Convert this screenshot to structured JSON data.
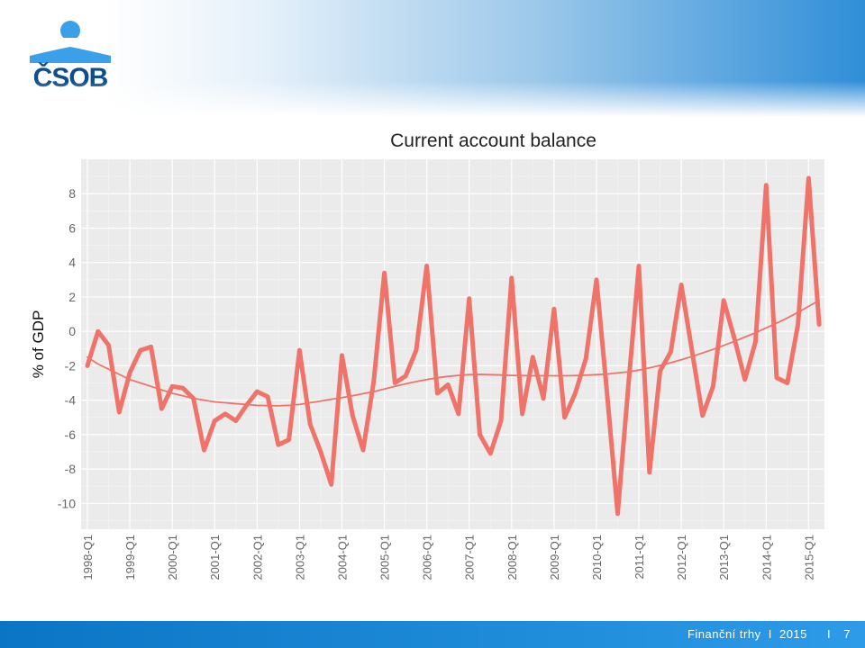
{
  "brand": {
    "name": "ČSOB",
    "color": "#0c4f8e",
    "accent": "#3aa0ea"
  },
  "footer": {
    "label": "Finanční trhy",
    "sep1": "I",
    "year": "2015",
    "sep2": "I",
    "page": "7"
  },
  "chart_data": {
    "type": "line",
    "title": "Current account balance",
    "xlabel": "",
    "ylabel": "% of GDP",
    "ylim": [
      -11.5,
      10
    ],
    "yticks": [
      -10,
      -8,
      -6,
      -4,
      -2,
      0,
      2,
      4,
      6,
      8
    ],
    "grid": true,
    "legend": "none",
    "x_tick_labels": [
      "1998-Q1",
      "1999-Q1",
      "2000-Q1",
      "2001-Q1",
      "2002-Q1",
      "2003-Q1",
      "2004-Q1",
      "2005-Q1",
      "2006-Q1",
      "2007-Q1",
      "2008-Q1",
      "2009-Q1",
      "2010-Q1",
      "2011-Q1",
      "2012-Q1",
      "2013-Q1",
      "2014-Q1",
      "2015-Q1"
    ],
    "x_start": "1998-Q1",
    "series": [
      {
        "color": "#f0736a",
        "style": "thick",
        "values": [
          -2.0,
          0.0,
          -0.8,
          -4.7,
          -2.4,
          -1.1,
          -0.9,
          -4.5,
          -3.2,
          -3.3,
          -3.9,
          -6.9,
          -5.2,
          -4.8,
          -5.2,
          -4.3,
          -3.5,
          -3.8,
          -6.6,
          -6.3,
          -1.1,
          -5.4,
          -7.0,
          -8.9,
          -1.4,
          -4.9,
          -6.9,
          -2.9,
          3.4,
          -3.0,
          -2.6,
          -1.1,
          3.8,
          -3.6,
          -3.1,
          -4.8,
          1.9,
          -6.0,
          -7.1,
          -5.2,
          3.1,
          -4.8,
          -1.5,
          -3.9,
          1.3,
          -5.0,
          -3.6,
          -1.6,
          3.0,
          -3.6,
          -10.6,
          -3.2,
          3.8,
          -8.2,
          -2.3,
          -1.2,
          2.7,
          -1.1,
          -4.9,
          -3.2,
          1.8,
          -0.4,
          -2.8,
          -0.6,
          8.5,
          -2.7,
          -3.0,
          0.4,
          8.9,
          0.4
        ]
      },
      {
        "color": "#f0736a",
        "style": "thin",
        "values": [
          -1.5,
          -1.9,
          -2.2,
          -2.5,
          -2.8,
          -3.0,
          -3.2,
          -3.4,
          -3.6,
          -3.75,
          -3.9,
          -4.0,
          -4.1,
          -4.15,
          -4.2,
          -4.25,
          -4.3,
          -4.32,
          -4.33,
          -4.3,
          -4.25,
          -4.15,
          -4.05,
          -3.95,
          -3.85,
          -3.75,
          -3.62,
          -3.5,
          -3.35,
          -3.2,
          -3.05,
          -2.92,
          -2.8,
          -2.7,
          -2.62,
          -2.56,
          -2.52,
          -2.5,
          -2.52,
          -2.54,
          -2.56,
          -2.57,
          -2.58,
          -2.58,
          -2.58,
          -2.58,
          -2.57,
          -2.55,
          -2.52,
          -2.48,
          -2.42,
          -2.35,
          -2.25,
          -2.12,
          -1.98,
          -1.82,
          -1.65,
          -1.46,
          -1.26,
          -1.05,
          -0.82,
          -0.58,
          -0.33,
          -0.08,
          0.2,
          0.48,
          0.78,
          1.1,
          1.45,
          1.8
        ]
      }
    ]
  }
}
